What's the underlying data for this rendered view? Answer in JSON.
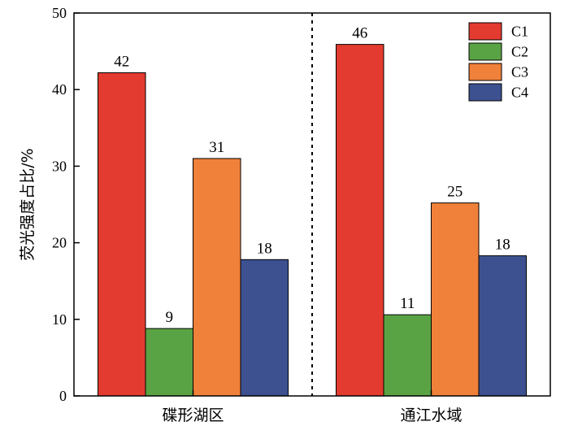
{
  "chart_data": {
    "type": "bar",
    "title": "",
    "xlabel": "",
    "ylabel": "荧光强度占比/%",
    "ylim": [
      0,
      50
    ],
    "yticks": [
      0,
      10,
      20,
      30,
      40,
      50
    ],
    "categories": [
      "碟形湖区",
      "通江水域"
    ],
    "series": [
      {
        "name": "C1",
        "color": "#e33b2f",
        "values": [
          42.2,
          45.9
        ],
        "labels": [
          "42",
          "46"
        ]
      },
      {
        "name": "C2",
        "color": "#5aa345",
        "values": [
          8.8,
          10.6
        ],
        "labels": [
          "9",
          "11"
        ]
      },
      {
        "name": "C3",
        "color": "#f0813a",
        "values": [
          31.0,
          25.2
        ],
        "labels": [
          "31",
          "25"
        ]
      },
      {
        "name": "C4",
        "color": "#3d5191",
        "values": [
          17.8,
          18.3
        ],
        "labels": [
          "18",
          "18"
        ]
      }
    ],
    "legend_position": "top-right",
    "grid": false,
    "separator": "dotted-vertical-between-groups"
  }
}
